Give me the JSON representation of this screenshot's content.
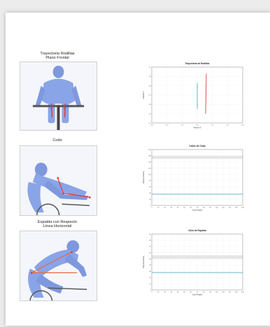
{
  "colors": {
    "page_bg": "#ffffff",
    "figure_blue": "#8aa4e8",
    "marker_red": "#e43a2a",
    "marker_orange": "#ec6a3a",
    "teal_line": "#3aa6b4",
    "red_line": "#d8262a",
    "band": "#e6e6e6"
  },
  "sections": [
    {
      "title_lines": [
        "Trayectoria Rodillas",
        "Plano Frontal"
      ],
      "image_icon": "cyclist-frontal-view"
    },
    {
      "title_lines": [
        "Codo"
      ],
      "image_icon": "cyclist-side-view-elbow"
    },
    {
      "title_lines": [
        "Espalda con Respecto",
        "Línea Horizontal"
      ],
      "image_icon": "cyclist-side-view-back"
    }
  ],
  "chart_data": [
    {
      "type": "line",
      "title": "Trayectoria de Rodillas",
      "xlabel": "Posición X",
      "ylabel": "Posición Y",
      "xlim": [
        -0.3,
        0.3
      ],
      "ylim": [
        0.4,
        1.0
      ],
      "x_ticks": [
        "-0.3",
        "-0.2",
        "-0.1",
        "0.0",
        "0.1",
        "0.2",
        "0.3"
      ],
      "y_ticks": [
        "1.0",
        "0.9",
        "0.8",
        "0.7",
        "0.6",
        "0.5",
        "0.4"
      ],
      "series": [
        {
          "color": "#3aa6b4",
          "x": [
            0.0,
            0.0
          ],
          "y": [
            0.55,
            0.83
          ]
        },
        {
          "color": "#d8262a",
          "x": [
            0.055,
            0.06
          ],
          "y": [
            0.5,
            0.93
          ]
        }
      ],
      "grid": true
    },
    {
      "type": "line",
      "title": "Ciclos de Codo",
      "xlabel": "Ciclo Pedaleo",
      "ylabel": "Ángulo (Grados)",
      "xlim": [
        0,
        140
      ],
      "ylim": [
        0,
        180
      ],
      "x_ticks": [
        "0",
        "10",
        "20",
        "30",
        "40",
        "50",
        "60",
        "70",
        "80",
        "90",
        "100",
        "110",
        "120",
        "130",
        "140"
      ],
      "y_ticks": [
        "180",
        "160",
        "140",
        "120",
        "100",
        "80",
        "60",
        "40",
        "20",
        "0"
      ],
      "band": [
        150,
        160
      ],
      "series": [
        {
          "color": "#3aa6b4",
          "x": [
            0,
            140
          ],
          "y": [
            36,
            36
          ]
        }
      ],
      "grid": true
    },
    {
      "type": "line",
      "title": "Ciclo de Espalda",
      "xlabel": "Ciclo Pedaleo",
      "ylabel": "Ángulo (Grados)",
      "xlim": [
        0,
        140
      ],
      "ylim": [
        0,
        90
      ],
      "x_ticks": [
        "0",
        "10",
        "20",
        "30",
        "40",
        "50",
        "60",
        "70",
        "80",
        "90",
        "100",
        "110",
        "120",
        "130",
        "140"
      ],
      "y_ticks": [
        "90",
        "80",
        "70",
        "60",
        "50",
        "40",
        "30",
        "20",
        "10",
        "0"
      ],
      "band": [
        50,
        56
      ],
      "series": [
        {
          "color": "#3aa6b4",
          "x": [
            0,
            140
          ],
          "y": [
            28,
            28
          ]
        }
      ],
      "grid": true
    }
  ]
}
